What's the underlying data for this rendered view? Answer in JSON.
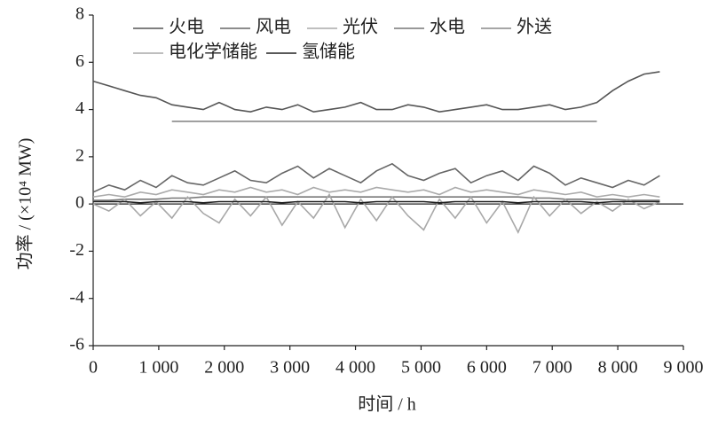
{
  "chart_data": {
    "type": "line",
    "x_label": "时间 / h",
    "y_label": "功率 / (×10⁴ MW)",
    "x": [
      0,
      240,
      480,
      720,
      960,
      1200,
      1440,
      1680,
      1920,
      2160,
      2400,
      2640,
      2880,
      3120,
      3360,
      3600,
      3840,
      4080,
      4320,
      4560,
      4800,
      5040,
      5280,
      5520,
      5760,
      6000,
      6240,
      6480,
      6720,
      6960,
      7200,
      7440,
      7680,
      7920,
      8160,
      8400,
      8640
    ],
    "xlim": [
      0,
      9000
    ],
    "xticks": [
      0,
      {
        "value": 1000,
        "label": "1 000"
      },
      {
        "value": 2000,
        "label": "2 000"
      },
      {
        "value": 3000,
        "label": "3 000"
      },
      {
        "value": 4000,
        "label": "4 000"
      },
      {
        "value": 5000,
        "label": "5 000"
      },
      {
        "value": 6000,
        "label": "6 000"
      },
      {
        "value": 7000,
        "label": "7 000"
      },
      {
        "value": 8000,
        "label": "8 000"
      },
      {
        "value": 9000,
        "label": "9 000"
      }
    ],
    "ylim": [
      -6,
      8
    ],
    "yticks": [
      -6,
      -4,
      -2,
      0,
      2,
      4,
      6,
      8
    ],
    "series": [
      {
        "name": "火电",
        "color": "#555555",
        "values": [
          5.2,
          5.0,
          4.8,
          4.6,
          4.5,
          4.2,
          4.1,
          4.0,
          4.3,
          4.0,
          3.9,
          4.1,
          4.0,
          4.2,
          3.9,
          4.0,
          4.1,
          4.3,
          4.0,
          4.0,
          4.2,
          4.1,
          3.9,
          4.0,
          4.1,
          4.2,
          4.0,
          4.0,
          4.1,
          4.2,
          4.0,
          4.1,
          4.3,
          4.8,
          5.2,
          5.5,
          5.6
        ]
      },
      {
        "name": "风电",
        "color": "#666666",
        "values": [
          0.5,
          0.8,
          0.6,
          1.0,
          0.7,
          1.2,
          0.9,
          0.8,
          1.1,
          1.4,
          1.0,
          0.9,
          1.3,
          1.6,
          1.1,
          1.5,
          1.2,
          0.9,
          1.4,
          1.7,
          1.2,
          1.0,
          1.3,
          1.5,
          0.9,
          1.2,
          1.4,
          1.0,
          1.6,
          1.3,
          0.8,
          1.1,
          0.9,
          0.7,
          1.0,
          0.8,
          1.2
        ]
      },
      {
        "name": "光伏",
        "color": "#aaaaaa",
        "values": [
          0.3,
          0.4,
          0.3,
          0.5,
          0.4,
          0.6,
          0.5,
          0.4,
          0.6,
          0.5,
          0.7,
          0.5,
          0.6,
          0.4,
          0.7,
          0.5,
          0.6,
          0.5,
          0.7,
          0.6,
          0.5,
          0.6,
          0.4,
          0.7,
          0.5,
          0.6,
          0.5,
          0.4,
          0.6,
          0.5,
          0.4,
          0.5,
          0.3,
          0.4,
          0.3,
          0.4,
          0.3
        ]
      },
      {
        "name": "水电",
        "color": "#777777",
        "values": [
          0.15,
          0.15,
          0.2,
          0.2,
          0.2,
          0.25,
          0.25,
          0.3,
          0.3,
          0.3,
          0.3,
          0.3,
          0.3,
          0.3,
          0.3,
          0.3,
          0.3,
          0.3,
          0.3,
          0.3,
          0.3,
          0.3,
          0.3,
          0.3,
          0.3,
          0.3,
          0.3,
          0.3,
          0.25,
          0.25,
          0.2,
          0.2,
          0.2,
          0.2,
          0.15,
          0.15,
          0.15
        ]
      },
      {
        "name": "外送",
        "color": "#888888",
        "values": [
          null,
          null,
          null,
          null,
          null,
          3.5,
          3.5,
          3.5,
          3.5,
          3.5,
          3.5,
          3.5,
          3.5,
          3.5,
          3.5,
          3.5,
          3.5,
          3.5,
          3.5,
          3.5,
          3.5,
          3.5,
          3.5,
          3.5,
          3.5,
          3.5,
          3.5,
          3.5,
          3.5,
          3.5,
          3.5,
          3.5,
          3.5,
          null,
          null,
          null,
          null
        ]
      },
      {
        "name": "电化学储能",
        "color": "#a8a8a8",
        "values": [
          0,
          -0.3,
          0.2,
          -0.5,
          0.1,
          -0.6,
          0.3,
          -0.4,
          -0.8,
          0.2,
          -0.5,
          0.3,
          -0.9,
          0.1,
          -0.6,
          0.4,
          -1.0,
          0.2,
          -0.7,
          0.3,
          -0.5,
          -1.1,
          0.2,
          -0.6,
          0.3,
          -0.8,
          0.1,
          -1.2,
          0.3,
          -0.5,
          0.2,
          -0.4,
          0.1,
          -0.3,
          0.2,
          -0.2,
          0.1
        ]
      },
      {
        "name": "氢储能",
        "color": "#222222",
        "values": [
          0.1,
          0.1,
          0.1,
          0.05,
          0.1,
          0.1,
          0.1,
          0.05,
          0.1,
          0.1,
          0.1,
          0.1,
          0.05,
          0.1,
          0.1,
          0.1,
          0.1,
          0.05,
          0.1,
          0.1,
          0.1,
          0.1,
          0.05,
          0.1,
          0.1,
          0.1,
          0.1,
          0.05,
          0.1,
          0.1,
          0.1,
          0.1,
          0.05,
          0.1,
          0.1,
          0.1,
          0.1
        ]
      }
    ]
  }
}
